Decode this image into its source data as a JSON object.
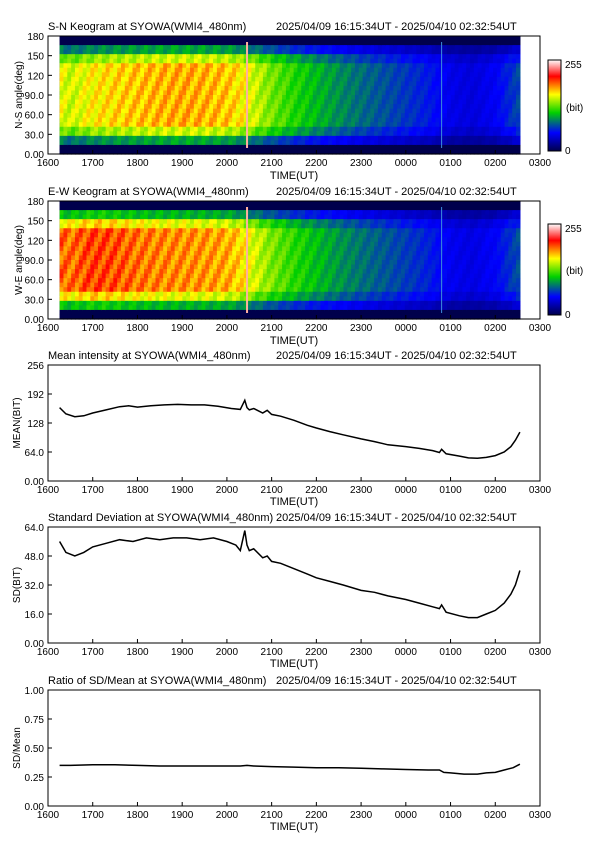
{
  "figure": {
    "time_range": "2025/04/09 16:15:34UT - 2025/04/10 02:32:54UT"
  },
  "chart_data": [
    {
      "type": "heatmap",
      "title": "S-N Keogram at SYOWA(WMI4_480nm)",
      "xlabel": "TIME(UT)",
      "ylabel": "N-S angle(deg)",
      "x_ticks": [
        "1600",
        "1700",
        "1800",
        "1900",
        "2000",
        "2100",
        "2200",
        "2300",
        "0000",
        "0100",
        "0200",
        "0300"
      ],
      "y_ticks": [
        "0.00",
        "30.0",
        "60.0",
        "90.0",
        "120",
        "150",
        "180"
      ],
      "xlim": [
        16.0,
        27.0
      ],
      "ylim": [
        0,
        180
      ],
      "colorbar": {
        "min_label": "0",
        "max_label": "255",
        "unit_label": "(bit)"
      },
      "intensity_profile": [
        [
          16.26,
          168
        ],
        [
          16.5,
          158
        ],
        [
          17.0,
          172
        ],
        [
          17.5,
          178
        ],
        [
          18.0,
          182
        ],
        [
          18.5,
          186
        ],
        [
          19.0,
          188
        ],
        [
          19.5,
          186
        ],
        [
          20.0,
          182
        ],
        [
          20.3,
          174
        ],
        [
          20.6,
          160
        ],
        [
          21.0,
          140
        ],
        [
          21.5,
          122
        ],
        [
          22.0,
          108
        ],
        [
          22.5,
          96
        ],
        [
          23.0,
          86
        ],
        [
          23.5,
          78
        ],
        [
          24.0,
          70
        ],
        [
          24.5,
          62
        ],
        [
          25.0,
          48
        ],
        [
          25.5,
          44
        ],
        [
          26.0,
          52
        ],
        [
          26.55,
          76
        ]
      ]
    },
    {
      "type": "heatmap",
      "title": "E-W Keogram at SYOWA(WMI4_480nm)",
      "xlabel": "TIME(UT)",
      "ylabel": "W-E angle(deg)",
      "x_ticks": [
        "1600",
        "1700",
        "1800",
        "1900",
        "2000",
        "2100",
        "2200",
        "2300",
        "0000",
        "0100",
        "0200",
        "0300"
      ],
      "y_ticks": [
        "0.00",
        "30.0",
        "60.0",
        "90.0",
        "120",
        "150",
        "180"
      ],
      "xlim": [
        16.0,
        27.0
      ],
      "ylim": [
        0,
        180
      ],
      "colorbar": {
        "min_label": "0",
        "max_label": "255",
        "unit_label": "(bit)"
      },
      "intensity_profile": [
        [
          16.26,
          205
        ],
        [
          16.5,
          200
        ],
        [
          17.0,
          212
        ],
        [
          17.5,
          208
        ],
        [
          18.0,
          200
        ],
        [
          18.5,
          196
        ],
        [
          19.0,
          194
        ],
        [
          19.5,
          192
        ],
        [
          20.0,
          188
        ],
        [
          20.3,
          178
        ],
        [
          20.6,
          162
        ],
        [
          21.0,
          142
        ],
        [
          21.5,
          124
        ],
        [
          22.0,
          110
        ],
        [
          22.5,
          98
        ],
        [
          23.0,
          88
        ],
        [
          23.5,
          80
        ],
        [
          24.0,
          72
        ],
        [
          24.5,
          64
        ],
        [
          25.0,
          50
        ],
        [
          25.5,
          46
        ],
        [
          26.0,
          54
        ],
        [
          26.55,
          78
        ]
      ]
    },
    {
      "type": "line",
      "title": "Mean intensity at SYOWA(WMI4_480nm)",
      "xlabel": "TIME(UT)",
      "ylabel": "MEAN(BIT)",
      "x_ticks": [
        "1600",
        "1700",
        "1800",
        "1900",
        "2000",
        "2100",
        "2200",
        "2300",
        "0000",
        "0100",
        "0200",
        "0300"
      ],
      "y_ticks": [
        "0.00",
        "64.0",
        "128",
        "192",
        "256"
      ],
      "xlim": [
        16.0,
        27.0
      ],
      "ylim": [
        0,
        256
      ],
      "x": [
        16.26,
        16.4,
        16.6,
        16.8,
        17.0,
        17.3,
        17.6,
        17.8,
        18.0,
        18.3,
        18.6,
        18.9,
        19.2,
        19.5,
        19.8,
        20.1,
        20.3,
        20.4,
        20.45,
        20.5,
        20.6,
        20.8,
        20.9,
        21.0,
        21.2,
        21.5,
        21.8,
        22.0,
        22.3,
        22.6,
        23.0,
        23.3,
        23.6,
        24.0,
        24.3,
        24.6,
        24.75,
        24.8,
        24.9,
        25.2,
        25.4,
        25.6,
        25.8,
        26.0,
        26.2,
        26.35,
        26.45,
        26.55
      ],
      "values": [
        162,
        148,
        142,
        144,
        150,
        157,
        164,
        166,
        163,
        166,
        168,
        169,
        168,
        168,
        165,
        160,
        158,
        178,
        162,
        157,
        160,
        150,
        156,
        147,
        143,
        134,
        123,
        117,
        109,
        102,
        93,
        87,
        80,
        76,
        72,
        67,
        63,
        70,
        60,
        55,
        51,
        50,
        52,
        56,
        64,
        76,
        90,
        108
      ]
    },
    {
      "type": "line",
      "title": "Standard Deviation at SYOWA(WMI4_480nm)",
      "xlabel": "TIME(UT)",
      "ylabel": "SD(BIT)",
      "x_ticks": [
        "1600",
        "1700",
        "1800",
        "1900",
        "2000",
        "2100",
        "2200",
        "2300",
        "0000",
        "0100",
        "0200",
        "0300"
      ],
      "y_ticks": [
        "0.00",
        "16.0",
        "32.0",
        "48.0",
        "64.0"
      ],
      "xlim": [
        16.0,
        27.0
      ],
      "ylim": [
        0,
        64
      ],
      "x": [
        16.26,
        16.4,
        16.6,
        16.8,
        17.0,
        17.3,
        17.6,
        17.9,
        18.2,
        18.5,
        18.8,
        19.1,
        19.4,
        19.7,
        20.0,
        20.2,
        20.3,
        20.4,
        20.45,
        20.5,
        20.6,
        20.8,
        20.9,
        21.0,
        21.2,
        21.5,
        21.8,
        22.0,
        22.3,
        22.6,
        23.0,
        23.3,
        23.6,
        24.0,
        24.3,
        24.6,
        24.75,
        24.8,
        24.9,
        25.2,
        25.4,
        25.6,
        25.8,
        26.0,
        26.2,
        26.35,
        26.45,
        26.55
      ],
      "values": [
        56,
        50,
        48,
        50,
        53,
        55,
        57,
        56,
        58,
        57,
        58,
        58,
        57,
        58,
        56,
        54,
        51,
        62,
        54,
        51,
        52,
        47,
        48,
        45,
        44,
        41,
        38,
        36,
        34,
        32,
        29,
        28,
        26,
        24,
        22,
        20,
        19,
        21,
        17,
        15,
        14,
        14,
        16,
        18,
        22,
        27,
        32,
        40
      ]
    },
    {
      "type": "line",
      "title": "Ratio of SD/Mean at SYOWA(WMI4_480nm)",
      "xlabel": "TIME(UT)",
      "ylabel": "SD/Mean",
      "x_ticks": [
        "1600",
        "1700",
        "1800",
        "1900",
        "2000",
        "2100",
        "2200",
        "2300",
        "0000",
        "0100",
        "0200",
        "0300"
      ],
      "y_ticks": [
        "0.00",
        "0.25",
        "0.50",
        "0.75",
        "1.00"
      ],
      "xlim": [
        16.0,
        27.0
      ],
      "ylim": [
        0,
        1.0
      ],
      "x": [
        16.26,
        16.5,
        17.0,
        17.5,
        18.0,
        18.5,
        19.0,
        19.5,
        20.0,
        20.3,
        20.45,
        20.6,
        21.0,
        21.5,
        22.0,
        22.5,
        23.0,
        23.5,
        24.0,
        24.5,
        24.75,
        24.85,
        25.0,
        25.3,
        25.6,
        25.8,
        26.0,
        26.2,
        26.4,
        26.55
      ],
      "values": [
        0.35,
        0.35,
        0.355,
        0.355,
        0.35,
        0.345,
        0.345,
        0.345,
        0.345,
        0.345,
        0.35,
        0.345,
        0.34,
        0.335,
        0.33,
        0.33,
        0.325,
        0.32,
        0.315,
        0.31,
        0.31,
        0.29,
        0.285,
        0.275,
        0.275,
        0.285,
        0.29,
        0.31,
        0.33,
        0.36
      ]
    }
  ]
}
